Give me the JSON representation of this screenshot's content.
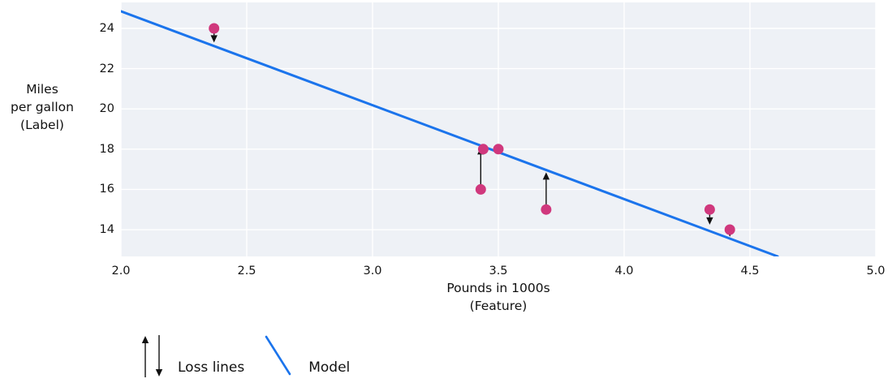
{
  "legend": {
    "loss_label": "Loss lines",
    "model_label": "Model"
  },
  "chart_data": {
    "type": "scatter",
    "title": "",
    "xlabel": "Pounds in 1000s (Feature)",
    "ylabel": "Miles per gallon (Label)",
    "xlabel_display": "Pounds in 1000s\n(Feature)",
    "ylabel_display": "Miles\nper gallon\n(Label)",
    "xlim": [
      2.0,
      5.0
    ],
    "ylim": [
      12.67,
      25.29
    ],
    "grid": true,
    "legend_position": "bottom-left",
    "x_ticks": [
      {
        "v": 2.0,
        "label": "2.0"
      },
      {
        "v": 2.5,
        "label": "2.5"
      },
      {
        "v": 3.0,
        "label": "3.0"
      },
      {
        "v": 3.5,
        "label": "3.5"
      },
      {
        "v": 4.0,
        "label": "4.0"
      },
      {
        "v": 4.5,
        "label": "4.5"
      },
      {
        "v": 5.0,
        "label": "5.0"
      }
    ],
    "y_ticks": [
      {
        "v": 14,
        "label": "14"
      },
      {
        "v": 16,
        "label": "16"
      },
      {
        "v": 18,
        "label": "18"
      },
      {
        "v": 20,
        "label": "20"
      },
      {
        "v": 22,
        "label": "22"
      },
      {
        "v": 24,
        "label": "24"
      }
    ],
    "points": {
      "name": "data-points",
      "x": [
        2.37,
        3.43,
        3.44,
        3.5,
        3.69,
        4.34,
        4.42
      ],
      "y": [
        24,
        16,
        18,
        18,
        15,
        15,
        14
      ],
      "radius": 6.5
    },
    "model_line": {
      "slope": -4.67,
      "intercept": 34.19,
      "x1": 2.0,
      "y1": 24.85,
      "x2": 4.61,
      "y2": 12.67
    },
    "loss_lines": [
      {
        "x": 2.37,
        "from": 24,
        "to": 23.3,
        "direction": "down"
      },
      {
        "x": 3.43,
        "from": 16,
        "to": 18.1,
        "direction": "up"
      },
      {
        "x": 3.69,
        "from": 15,
        "to": 16.85,
        "direction": "up"
      },
      {
        "x": 4.34,
        "from": 15,
        "to": 14.25,
        "direction": "down"
      },
      {
        "x": 4.42,
        "from": 14,
        "to": 13.65,
        "direction": "down"
      }
    ],
    "colors": {
      "model": "#1b74ec",
      "point": "#d0387d",
      "plot_bg": "#eef1f6",
      "grid": "#ffffff",
      "text": "#111111",
      "loss_arrow": "#111111"
    }
  }
}
